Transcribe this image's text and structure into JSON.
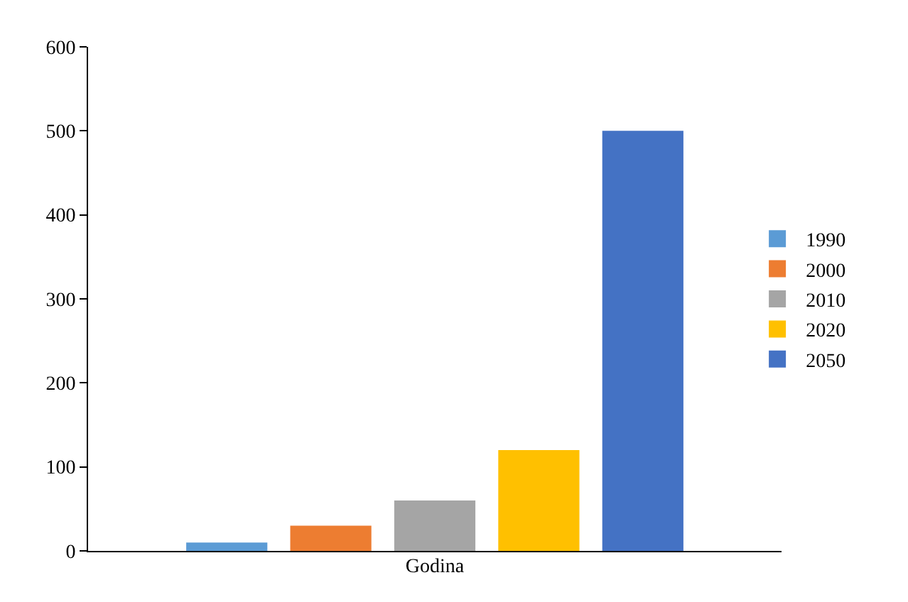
{
  "chart_data": {
    "type": "bar",
    "xlabel": "Godina",
    "categories": [
      null
    ],
    "series": [
      {
        "name": "1990",
        "color": "#5b9bd5",
        "values": [
          10
        ]
      },
      {
        "name": "2000",
        "color": "#ed7d31",
        "values": [
          30
        ]
      },
      {
        "name": "2010",
        "color": "#a5a5a5",
        "values": [
          60
        ]
      },
      {
        "name": "2020",
        "color": "#ffc000",
        "values": [
          120
        ]
      },
      {
        "name": "2050",
        "color": "#4472c4",
        "values": [
          500
        ]
      }
    ],
    "ylim": [
      0,
      600
    ],
    "yticks": [
      0,
      100,
      200,
      300,
      400,
      500,
      600
    ],
    "tick_labels": "y",
    "legend": "right"
  }
}
